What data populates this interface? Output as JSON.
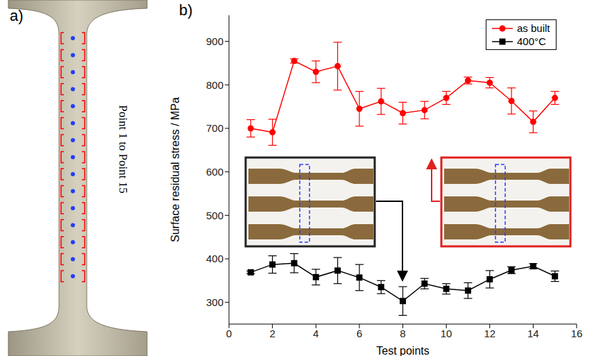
{
  "chart_data": {
    "type": "line",
    "panel_label": "b)",
    "x_label": "Test points",
    "y_label": "Surface residual stress / MPa",
    "x": [
      1,
      2,
      3,
      4,
      5,
      6,
      7,
      8,
      9,
      10,
      11,
      12,
      13,
      14,
      15
    ],
    "series": [
      {
        "name": "as built",
        "color": "#ff0000",
        "marker": "circle",
        "values": [
          700,
          691,
          855,
          830,
          843,
          745,
          762,
          735,
          742,
          770,
          810,
          805,
          763,
          715,
          770
        ],
        "errors": [
          20,
          30,
          5,
          25,
          55,
          40,
          30,
          25,
          20,
          15,
          8,
          12,
          30,
          25,
          15
        ]
      },
      {
        "name": "400°C",
        "color": "#000000",
        "marker": "square",
        "values": [
          369,
          387,
          390,
          358,
          373,
          357,
          335,
          303,
          343,
          331,
          327,
          353,
          374,
          383,
          360
        ],
        "errors": [
          3,
          20,
          22,
          18,
          30,
          30,
          15,
          33,
          12,
          12,
          18,
          20,
          8,
          6,
          12
        ]
      }
    ],
    "xlim": [
      0,
      16
    ],
    "xticks": [
      0,
      2,
      4,
      6,
      8,
      10,
      12,
      14,
      16
    ],
    "ylim": [
      250,
      960
    ],
    "yticks": [
      300,
      400,
      500,
      600,
      700,
      800,
      900
    ],
    "legend": "upper right"
  },
  "photo_panel": {
    "panel_label": "a)",
    "caption": "Point 1 to Point 15"
  }
}
